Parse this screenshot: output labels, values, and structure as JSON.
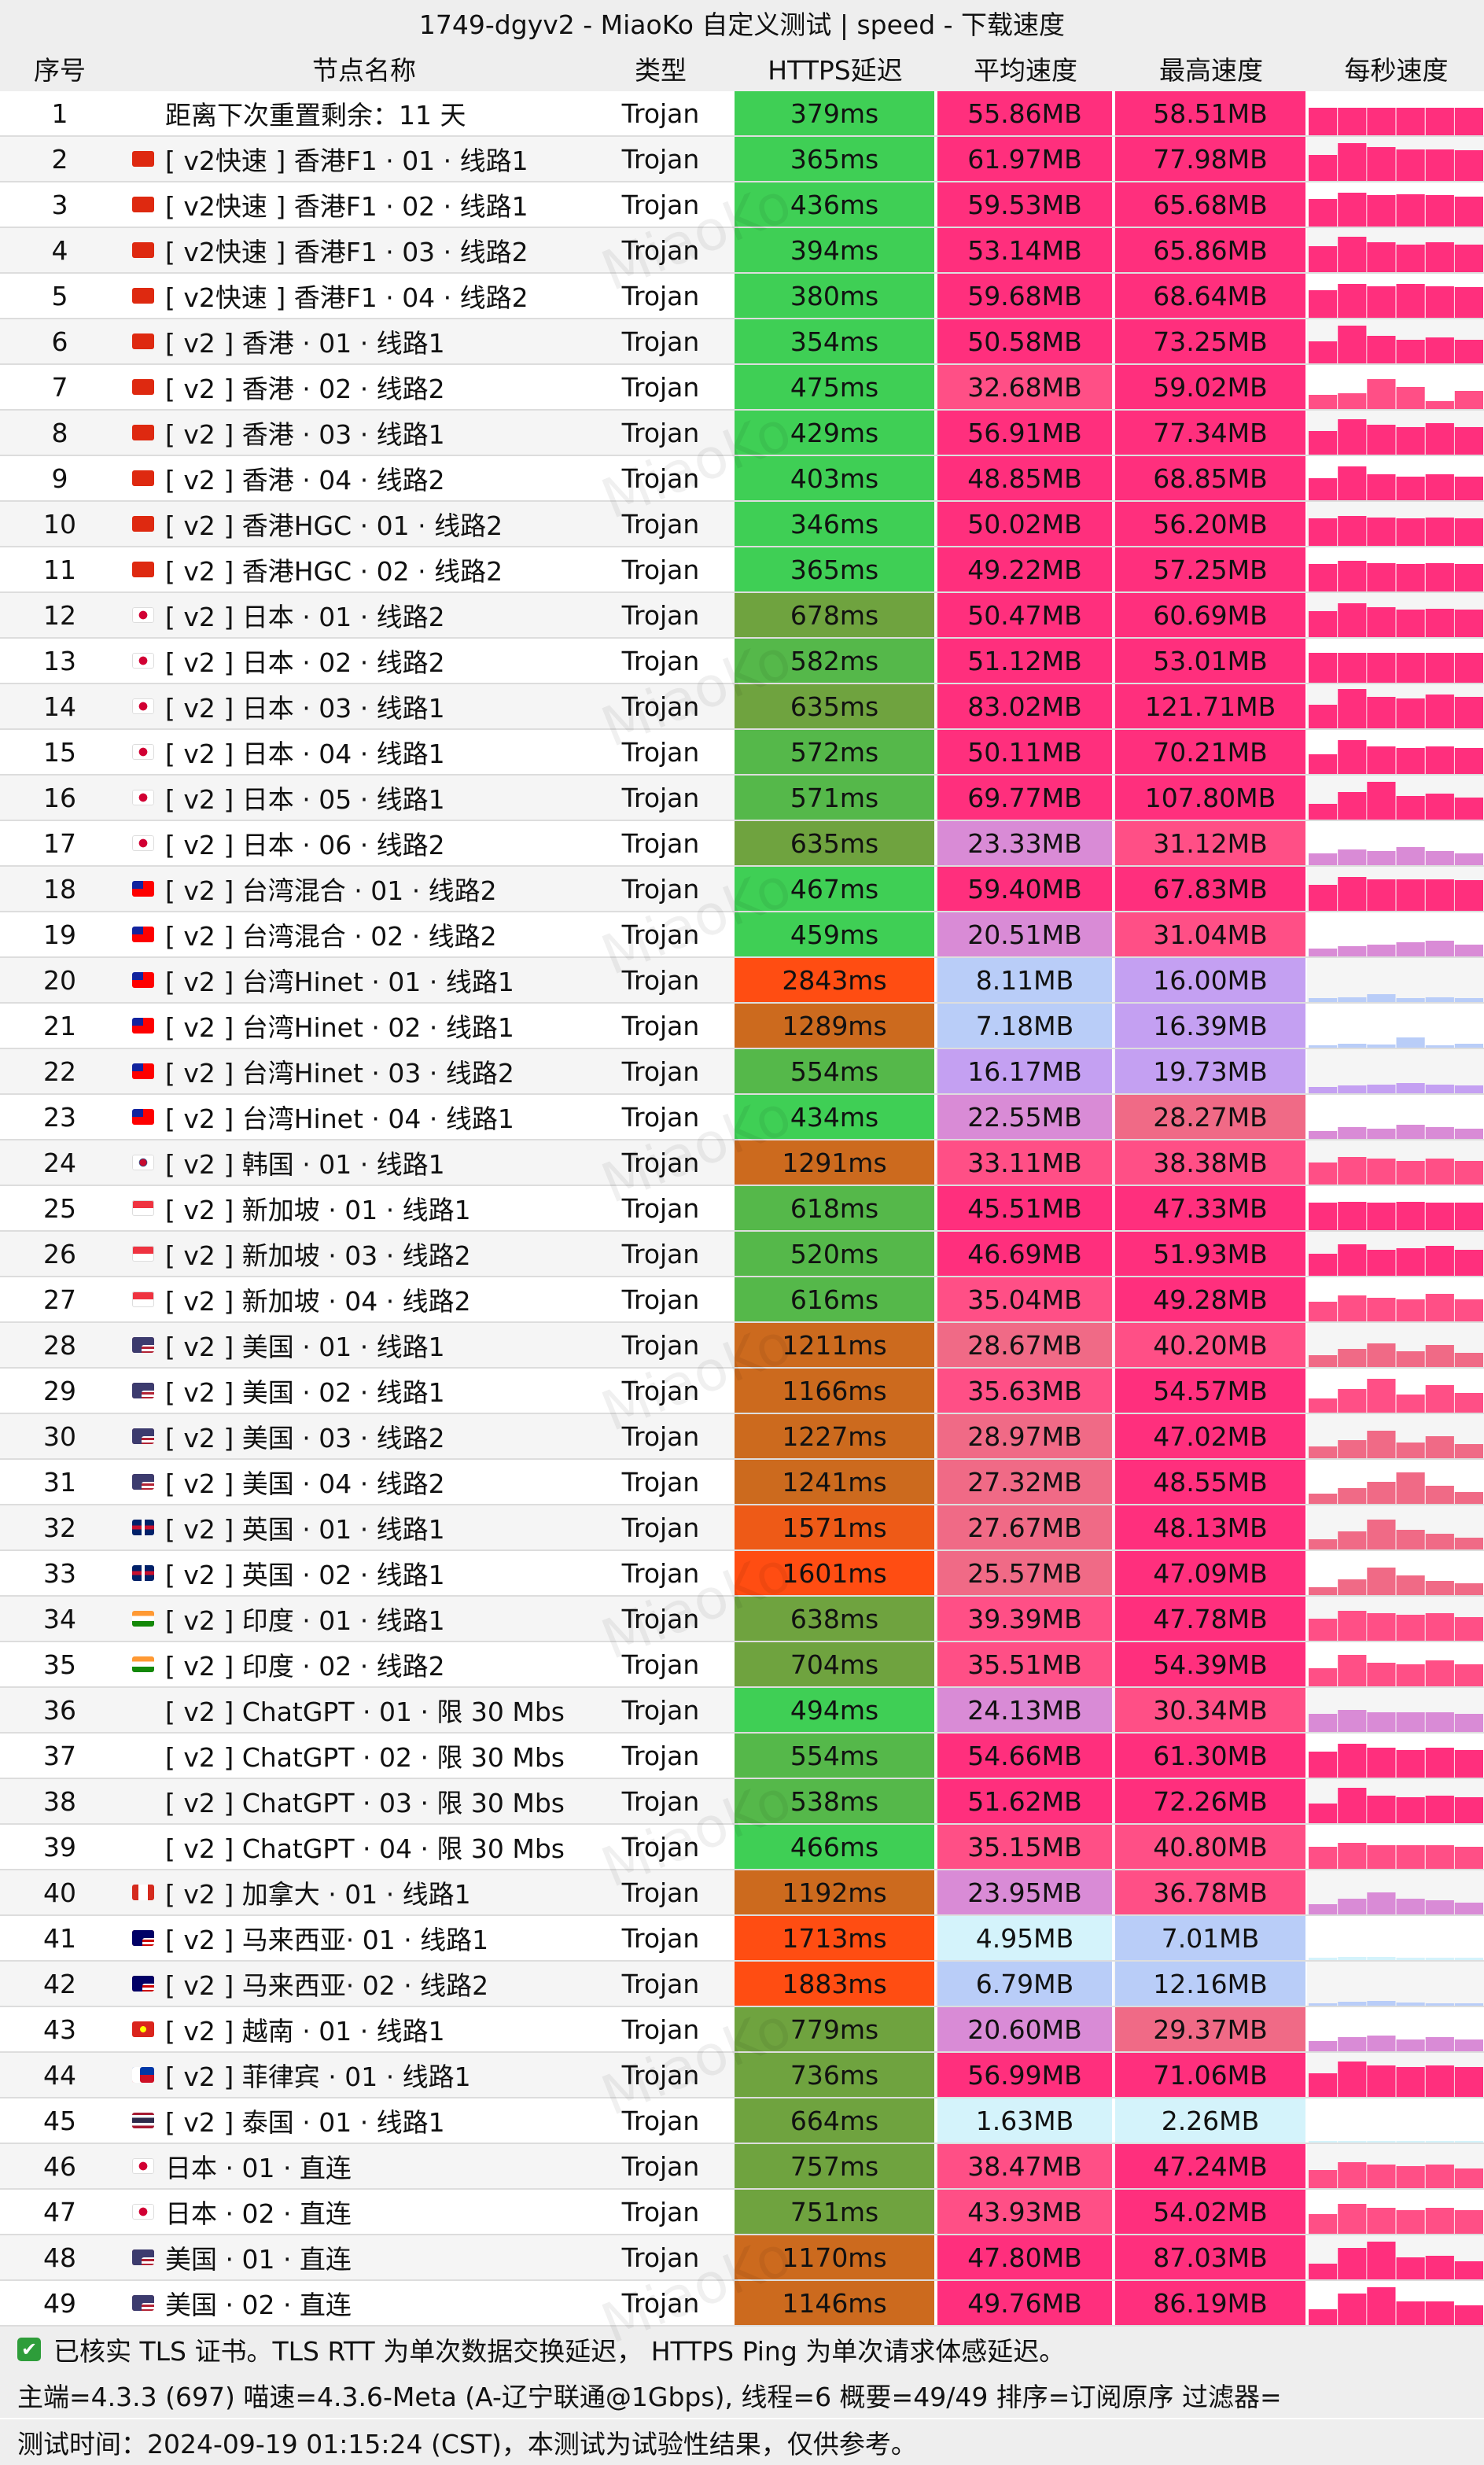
{
  "title": "1749-dgyv2 - MiaoKo 自定义测试 | speed - 下载速度",
  "watermark": "MiaoKo",
  "headers": {
    "idx": "序号",
    "name": "节点名称",
    "type": "类型",
    "latency": "HTTPS延迟",
    "avg": "平均速度",
    "max": "最高速度",
    "per_sec": "每秒速度"
  },
  "rows": [
    {
      "idx": "1",
      "flag": "",
      "name": "距离下次重置剩余：11 天",
      "type": "Trojan",
      "latency": "379ms",
      "avg": "55.86MB",
      "max": "58.51MB",
      "trend": [
        0.7,
        0.7,
        0.7,
        0.7,
        0.7,
        0.7
      ]
    },
    {
      "idx": "2",
      "flag": "hk",
      "name": "[ v2快速 ] 香港F1 · 01 · 线路1",
      "type": "Trojan",
      "latency": "365ms",
      "avg": "61.97MB",
      "max": "77.98MB",
      "trend": [
        0.65,
        0.95,
        0.85,
        0.8,
        0.8,
        0.78
      ]
    },
    {
      "idx": "3",
      "flag": "hk",
      "name": "[ v2快速 ] 香港F1 · 02 · 线路1",
      "type": "Trojan",
      "latency": "436ms",
      "avg": "59.53MB",
      "max": "65.68MB",
      "trend": [
        0.7,
        0.85,
        0.8,
        0.82,
        0.8,
        0.75
      ]
    },
    {
      "idx": "4",
      "flag": "hk",
      "name": "[ v2快速 ] 香港F1 · 03 · 线路2",
      "type": "Trojan",
      "latency": "394ms",
      "avg": "53.14MB",
      "max": "65.86MB",
      "trend": [
        0.65,
        0.9,
        0.75,
        0.7,
        0.75,
        0.7
      ]
    },
    {
      "idx": "5",
      "flag": "hk",
      "name": "[ v2快速 ] 香港F1 · 04 · 线路2",
      "type": "Trojan",
      "latency": "380ms",
      "avg": "59.68MB",
      "max": "68.64MB",
      "trend": [
        0.7,
        0.85,
        0.8,
        0.85,
        0.8,
        0.78
      ]
    },
    {
      "idx": "6",
      "flag": "hk",
      "name": "[ v2 ] 香港 · 01 · 线路1",
      "type": "Trojan",
      "latency": "354ms",
      "avg": "50.58MB",
      "max": "73.25MB",
      "trend": [
        0.55,
        0.95,
        0.7,
        0.6,
        0.65,
        0.6
      ]
    },
    {
      "idx": "7",
      "flag": "hk",
      "name": "[ v2 ] 香港 · 02 · 线路2",
      "type": "Trojan",
      "latency": "475ms",
      "avg": "32.68MB",
      "max": "59.02MB",
      "trend": [
        0.35,
        0.4,
        0.75,
        0.55,
        0.2,
        0.45
      ]
    },
    {
      "idx": "8",
      "flag": "hk",
      "name": "[ v2 ] 香港 · 03 · 线路1",
      "type": "Trojan",
      "latency": "429ms",
      "avg": "56.91MB",
      "max": "77.34MB",
      "trend": [
        0.6,
        0.9,
        0.75,
        0.7,
        0.8,
        0.7
      ]
    },
    {
      "idx": "9",
      "flag": "hk",
      "name": "[ v2 ] 香港 · 04 · 线路2",
      "type": "Trojan",
      "latency": "403ms",
      "avg": "48.85MB",
      "max": "68.85MB",
      "trend": [
        0.55,
        0.85,
        0.65,
        0.6,
        0.65,
        0.6
      ]
    },
    {
      "idx": "10",
      "flag": "hk",
      "name": "[ v2 ] 香港HGC · 01 · 线路2",
      "type": "Trojan",
      "latency": "346ms",
      "avg": "50.02MB",
      "max": "56.20MB",
      "trend": [
        0.7,
        0.75,
        0.72,
        0.7,
        0.72,
        0.7
      ]
    },
    {
      "idx": "11",
      "flag": "hk",
      "name": "[ v2 ] 香港HGC · 02 · 线路2",
      "type": "Trojan",
      "latency": "365ms",
      "avg": "49.22MB",
      "max": "57.25MB",
      "trend": [
        0.7,
        0.78,
        0.72,
        0.7,
        0.72,
        0.7
      ]
    },
    {
      "idx": "12",
      "flag": "jp",
      "name": "[ v2 ] 日本 · 01 · 线路2",
      "type": "Trojan",
      "latency": "678ms",
      "avg": "50.47MB",
      "max": "60.69MB",
      "trend": [
        0.65,
        0.85,
        0.75,
        0.7,
        0.72,
        0.7
      ]
    },
    {
      "idx": "13",
      "flag": "jp",
      "name": "[ v2 ] 日本 · 02 · 线路2",
      "type": "Trojan",
      "latency": "582ms",
      "avg": "51.12MB",
      "max": "53.01MB",
      "trend": [
        0.75,
        0.75,
        0.75,
        0.75,
        0.75,
        0.75
      ]
    },
    {
      "idx": "14",
      "flag": "jp",
      "name": "[ v2 ] 日本 · 03 · 线路1",
      "type": "Trojan",
      "latency": "635ms",
      "avg": "83.02MB",
      "max": "121.71MB",
      "trend": [
        0.6,
        1.0,
        0.8,
        0.75,
        0.85,
        0.8
      ]
    },
    {
      "idx": "15",
      "flag": "jp",
      "name": "[ v2 ] 日本 · 04 · 线路1",
      "type": "Trojan",
      "latency": "572ms",
      "avg": "50.11MB",
      "max": "70.21MB",
      "trend": [
        0.5,
        0.85,
        0.7,
        0.65,
        0.7,
        0.65
      ]
    },
    {
      "idx": "16",
      "flag": "jp",
      "name": "[ v2 ] 日本 · 05 · 线路1",
      "type": "Trojan",
      "latency": "571ms",
      "avg": "69.77MB",
      "max": "107.80MB",
      "trend": [
        0.4,
        0.7,
        0.95,
        0.6,
        0.65,
        0.55
      ]
    },
    {
      "idx": "17",
      "flag": "jp",
      "name": "[ v2 ] 日本 · 06 · 线路2",
      "type": "Trojan",
      "latency": "635ms",
      "avg": "23.33MB",
      "max": "31.12MB",
      "trend": [
        0.3,
        0.4,
        0.35,
        0.45,
        0.35,
        0.3
      ]
    },
    {
      "idx": "18",
      "flag": "tw",
      "name": "[ v2 ] 台湾混合 · 01 · 线路2",
      "type": "Trojan",
      "latency": "467ms",
      "avg": "59.40MB",
      "max": "67.83MB",
      "trend": [
        0.65,
        0.85,
        0.8,
        0.8,
        0.8,
        0.78
      ]
    },
    {
      "idx": "19",
      "flag": "tw",
      "name": "[ v2 ] 台湾混合 · 02 · 线路2",
      "type": "Trojan",
      "latency": "459ms",
      "avg": "20.51MB",
      "max": "31.04MB",
      "trend": [
        0.2,
        0.25,
        0.3,
        0.35,
        0.4,
        0.3
      ]
    },
    {
      "idx": "20",
      "flag": "tw",
      "name": "[ v2 ] 台湾Hinet · 01 · 线路1",
      "type": "Trojan",
      "latency": "2843ms",
      "avg": "8.11MB",
      "max": "16.00MB",
      "trend": [
        0.1,
        0.12,
        0.2,
        0.1,
        0.12,
        0.1
      ]
    },
    {
      "idx": "21",
      "flag": "tw",
      "name": "[ v2 ] 台湾Hinet · 02 · 线路1",
      "type": "Trojan",
      "latency": "1289ms",
      "avg": "7.18MB",
      "max": "16.39MB",
      "trend": [
        0.05,
        0.1,
        0.08,
        0.25,
        0.05,
        0.1
      ]
    },
    {
      "idx": "22",
      "flag": "tw",
      "name": "[ v2 ] 台湾Hinet · 03 · 线路2",
      "type": "Trojan",
      "latency": "554ms",
      "avg": "16.17MB",
      "max": "19.73MB",
      "trend": [
        0.15,
        0.2,
        0.22,
        0.25,
        0.22,
        0.2
      ]
    },
    {
      "idx": "23",
      "flag": "tw",
      "name": "[ v2 ] 台湾Hinet · 04 · 线路1",
      "type": "Trojan",
      "latency": "434ms",
      "avg": "22.55MB",
      "max": "28.27MB",
      "trend": [
        0.2,
        0.3,
        0.25,
        0.35,
        0.3,
        0.25
      ]
    },
    {
      "idx": "24",
      "flag": "kr",
      "name": "[ v2 ] 韩国 · 01 · 线路1",
      "type": "Trojan",
      "latency": "1291ms",
      "avg": "33.11MB",
      "max": "38.38MB",
      "trend": [
        0.55,
        0.7,
        0.65,
        0.6,
        0.65,
        0.6
      ]
    },
    {
      "idx": "25",
      "flag": "sg",
      "name": "[ v2 ] 新加坡 · 01 · 线路1",
      "type": "Trojan",
      "latency": "618ms",
      "avg": "45.51MB",
      "max": "47.33MB",
      "trend": [
        0.7,
        0.72,
        0.7,
        0.72,
        0.7,
        0.7
      ]
    },
    {
      "idx": "26",
      "flag": "sg",
      "name": "[ v2 ] 新加坡 · 03 · 线路2",
      "type": "Trojan",
      "latency": "520ms",
      "avg": "46.69MB",
      "max": "51.93MB",
      "trend": [
        0.55,
        0.8,
        0.65,
        0.7,
        0.75,
        0.65
      ]
    },
    {
      "idx": "27",
      "flag": "sg",
      "name": "[ v2 ] 新加坡 · 04 · 线路2",
      "type": "Trojan",
      "latency": "616ms",
      "avg": "35.04MB",
      "max": "49.28MB",
      "trend": [
        0.5,
        0.65,
        0.6,
        0.55,
        0.7,
        0.55
      ]
    },
    {
      "idx": "28",
      "flag": "us",
      "name": "[ v2 ] 美国 · 01 · 线路1",
      "type": "Trojan",
      "latency": "1211ms",
      "avg": "28.67MB",
      "max": "40.20MB",
      "trend": [
        0.3,
        0.45,
        0.6,
        0.4,
        0.55,
        0.35
      ]
    },
    {
      "idx": "29",
      "flag": "us",
      "name": "[ v2 ] 美国 · 02 · 线路1",
      "type": "Trojan",
      "latency": "1166ms",
      "avg": "35.63MB",
      "max": "54.57MB",
      "trend": [
        0.35,
        0.6,
        0.85,
        0.45,
        0.7,
        0.5
      ]
    },
    {
      "idx": "30",
      "flag": "us",
      "name": "[ v2 ] 美国 · 03 · 线路2",
      "type": "Trojan",
      "latency": "1227ms",
      "avg": "28.97MB",
      "max": "47.02MB",
      "trend": [
        0.3,
        0.45,
        0.7,
        0.4,
        0.55,
        0.35
      ]
    },
    {
      "idx": "31",
      "flag": "us",
      "name": "[ v2 ] 美国 · 04 · 线路2",
      "type": "Trojan",
      "latency": "1241ms",
      "avg": "27.32MB",
      "max": "48.55MB",
      "trend": [
        0.25,
        0.4,
        0.55,
        0.8,
        0.45,
        0.3
      ]
    },
    {
      "idx": "32",
      "flag": "gb",
      "name": "[ v2 ] 英国 · 01 · 线路1",
      "type": "Trojan",
      "latency": "1571ms",
      "avg": "27.67MB",
      "max": "48.13MB",
      "trend": [
        0.25,
        0.45,
        0.75,
        0.5,
        0.4,
        0.3
      ]
    },
    {
      "idx": "33",
      "flag": "gb",
      "name": "[ v2 ] 英国 · 02 · 线路1",
      "type": "Trojan",
      "latency": "1601ms",
      "avg": "25.57MB",
      "max": "47.09MB",
      "trend": [
        0.2,
        0.4,
        0.7,
        0.5,
        0.35,
        0.3
      ]
    },
    {
      "idx": "34",
      "flag": "in",
      "name": "[ v2 ] 印度 · 01 · 线路1",
      "type": "Trojan",
      "latency": "638ms",
      "avg": "39.39MB",
      "max": "47.78MB",
      "trend": [
        0.55,
        0.75,
        0.7,
        0.65,
        0.7,
        0.6
      ]
    },
    {
      "idx": "35",
      "flag": "in",
      "name": "[ v2 ] 印度 · 02 · 线路2",
      "type": "Trojan",
      "latency": "704ms",
      "avg": "35.51MB",
      "max": "54.39MB",
      "trend": [
        0.45,
        0.8,
        0.6,
        0.55,
        0.65,
        0.55
      ]
    },
    {
      "idx": "36",
      "flag": "",
      "name": "[ v2 ] ChatGPT · 01 · 限 30 Mbs",
      "type": "Trojan",
      "latency": "494ms",
      "avg": "24.13MB",
      "max": "30.34MB",
      "trend": [
        0.45,
        0.55,
        0.5,
        0.5,
        0.5,
        0.45
      ]
    },
    {
      "idx": "37",
      "flag": "",
      "name": "[ v2 ] ChatGPT · 02 · 限 30 Mbs",
      "type": "Trojan",
      "latency": "554ms",
      "avg": "54.66MB",
      "max": "61.30MB",
      "trend": [
        0.65,
        0.85,
        0.75,
        0.7,
        0.75,
        0.7
      ]
    },
    {
      "idx": "38",
      "flag": "",
      "name": "[ v2 ] ChatGPT · 03 · 限 30 Mbs",
      "type": "Trojan",
      "latency": "538ms",
      "avg": "51.62MB",
      "max": "72.26MB",
      "trend": [
        0.5,
        0.9,
        0.7,
        0.65,
        0.7,
        0.65
      ]
    },
    {
      "idx": "39",
      "flag": "",
      "name": "[ v2 ] ChatGPT · 04 · 限 30 Mbs",
      "type": "Trojan",
      "latency": "466ms",
      "avg": "35.15MB",
      "max": "40.80MB",
      "trend": [
        0.55,
        0.65,
        0.6,
        0.6,
        0.6,
        0.55
      ]
    },
    {
      "idx": "40",
      "flag": "ca",
      "name": "[ v2 ] 加拿大 · 01 · 线路1",
      "type": "Trojan",
      "latency": "1192ms",
      "avg": "23.95MB",
      "max": "36.78MB",
      "trend": [
        0.25,
        0.4,
        0.55,
        0.4,
        0.35,
        0.3
      ]
    },
    {
      "idx": "41",
      "flag": "my",
      "name": "[ v2 ] 马来西亚· 01 · 线路1",
      "type": "Trojan",
      "latency": "1713ms",
      "avg": "4.95MB",
      "max": "7.01MB",
      "trend": [
        0.06,
        0.08,
        0.07,
        0.06,
        0.06,
        0.05
      ]
    },
    {
      "idx": "42",
      "flag": "my",
      "name": "[ v2 ] 马来西亚· 02 · 线路2",
      "type": "Trojan",
      "latency": "1883ms",
      "avg": "6.79MB",
      "max": "12.16MB",
      "trend": [
        0.05,
        0.1,
        0.12,
        0.08,
        0.06,
        0.05
      ]
    },
    {
      "idx": "43",
      "flag": "vn",
      "name": "[ v2 ] 越南 · 01 · 线路1",
      "type": "Trojan",
      "latency": "779ms",
      "avg": "20.60MB",
      "max": "29.37MB",
      "trend": [
        0.25,
        0.35,
        0.4,
        0.3,
        0.35,
        0.3
      ]
    },
    {
      "idx": "44",
      "flag": "ph",
      "name": "[ v2 ] 菲律宾 · 01 · 线路1",
      "type": "Trojan",
      "latency": "736ms",
      "avg": "56.99MB",
      "max": "71.06MB",
      "trend": [
        0.6,
        0.9,
        0.8,
        0.75,
        0.8,
        0.75
      ]
    },
    {
      "idx": "45",
      "flag": "th",
      "name": "[ v2 ] 泰国 · 01 · 线路1",
      "type": "Trojan",
      "latency": "664ms",
      "avg": "1.63MB",
      "max": "2.26MB",
      "trend": [
        0.02,
        0.03,
        0.02,
        0.02,
        0.02,
        0.02
      ]
    },
    {
      "idx": "46",
      "flag": "jp",
      "name": "日本 · 01 · 直连",
      "type": "Trojan",
      "latency": "757ms",
      "avg": "38.47MB",
      "max": "47.24MB",
      "trend": [
        0.45,
        0.65,
        0.6,
        0.55,
        0.6,
        0.5
      ]
    },
    {
      "idx": "47",
      "flag": "jp",
      "name": "日本 · 02 · 直连",
      "type": "Trojan",
      "latency": "751ms",
      "avg": "43.93MB",
      "max": "54.02MB",
      "trend": [
        0.5,
        0.75,
        0.65,
        0.6,
        0.65,
        0.6
      ]
    },
    {
      "idx": "48",
      "flag": "us",
      "name": "美国 · 01 · 直连",
      "type": "Trojan",
      "latency": "1170ms",
      "avg": "47.80MB",
      "max": "87.03MB",
      "trend": [
        0.4,
        0.8,
        0.95,
        0.55,
        0.6,
        0.45
      ]
    },
    {
      "idx": "49",
      "flag": "us",
      "name": "美国 · 02 · 直连",
      "type": "Trojan",
      "latency": "1146ms",
      "avg": "49.76MB",
      "max": "86.19MB",
      "trend": [
        0.4,
        0.8,
        0.95,
        0.6,
        0.6,
        0.5
      ]
    }
  ],
  "footer": {
    "tls_note": "已核实 TLS 证书。TLS RTT 为单次数据交换延迟， HTTPS Ping 为单次请求体感延迟。",
    "meta": "主端=4.3.3 (697) 喵速=4.3.6-Meta (A-辽宁联通@1Gbps), 线程=6 概要=49/49 排序=订阅原序 过滤器=",
    "time": "测试时间：2024-09-19 01:15:24 (CST)，本测试为试验性结果，仅供参考。"
  },
  "colors": {
    "header_bg": "#eeeeee",
    "check_green": "#2e9d3a"
  }
}
